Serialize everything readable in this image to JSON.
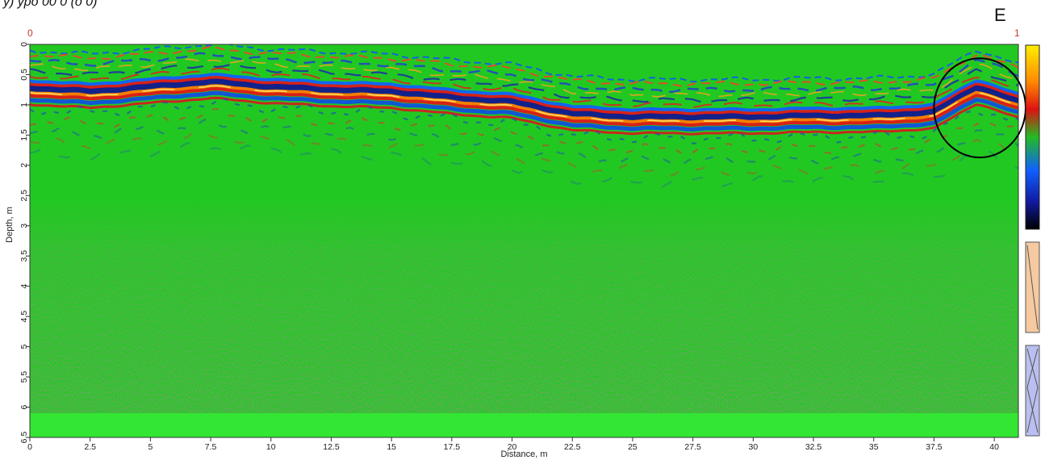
{
  "figure": {
    "caption": "y) ypo 00 0 (o 0)",
    "panel_letter": "E",
    "trace_start": "0",
    "trace_end": "1"
  },
  "chart_data": {
    "type": "heatmap",
    "title": "",
    "xlabel": "Distance, m",
    "ylabel": "Depth, m",
    "xlim": [
      0,
      41
    ],
    "ylim": [
      6.5,
      0
    ],
    "x_ticks": [
      0,
      2.5,
      5,
      7.5,
      10,
      12.5,
      15,
      17.5,
      20,
      22.5,
      25,
      27.5,
      30,
      32.5,
      35,
      37.5,
      40
    ],
    "x_tick_labels": [
      "0",
      "2.5",
      "5",
      "7.5",
      "10",
      "12.5",
      "15",
      "17.5",
      "20",
      "22.5",
      "25",
      "27.5",
      "30",
      "32.5",
      "35",
      "37.5",
      "40"
    ],
    "y_ticks": [
      0,
      0.5,
      1,
      1.5,
      2,
      2.5,
      3,
      3.5,
      4,
      4.5,
      5,
      5.5,
      6,
      6.5
    ],
    "y_tick_labels": [
      "0",
      "0.5",
      "1",
      "1.5",
      "2",
      "2.5",
      "3",
      "3.5",
      "4",
      "4.5",
      "5",
      "5.5",
      "6",
      "6.5"
    ],
    "colormap": [
      "#ffe800",
      "#ff8a00",
      "#e02020",
      "#22c020",
      "#1060ff",
      "#1020a0",
      "#000000"
    ],
    "background_color": "#22c822",
    "reflector": {
      "x": [
        0,
        2.5,
        5,
        7.5,
        10,
        12.5,
        15,
        17.5,
        20,
        22.5,
        25,
        27.5,
        30,
        32.5,
        35,
        37.5,
        39.3,
        41
      ],
      "depth": [
        0.72,
        0.78,
        0.7,
        0.62,
        0.7,
        0.75,
        0.78,
        0.88,
        0.95,
        1.15,
        1.2,
        1.2,
        1.2,
        1.18,
        1.18,
        1.12,
        0.7,
        0.95
      ]
    },
    "noise_zone_depth": [
      2.8,
      6.1
    ],
    "anomaly_circle": {
      "x_center": 39.4,
      "depth_center": 1.05,
      "x_radius": 1.9,
      "depth_radius": 0.82
    },
    "grid": false
  }
}
